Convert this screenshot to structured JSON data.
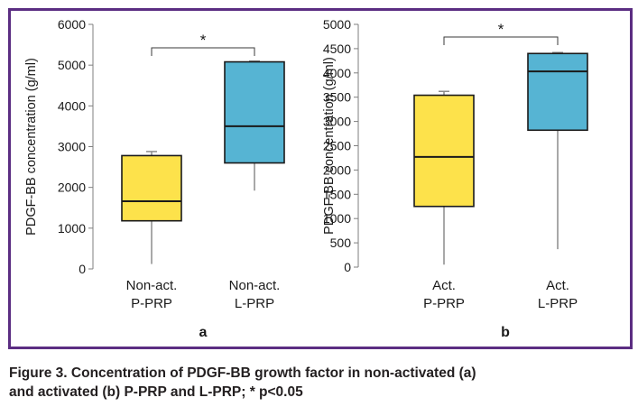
{
  "caption": {
    "line1": "Figure 3. Concentration of PDGF-BB growth factor in non-activated (a)",
    "line2": "and activated (b) P-PRP and L-PRP; * p<0.05"
  },
  "colors": {
    "frame": "#5b2d82",
    "box_p_prp": "#fde24b",
    "box_l_prp": "#56b4d3",
    "outline": "#1a1a1a",
    "whisker": "#8c8c8c"
  },
  "chart_data": [
    {
      "type": "boxplot",
      "panel_label": "a",
      "ylabel": "PDGF-BB concentration (g/ml)",
      "ylim": [
        0,
        6000
      ],
      "yticks": [
        0,
        1000,
        2000,
        3000,
        4000,
        5000,
        6000
      ],
      "grid": false,
      "significance": "*",
      "series": [
        {
          "label_lines": [
            "Non-act.",
            "P-PRP"
          ],
          "color": "#fde24b",
          "min": 120,
          "q1": 1180,
          "median": 1660,
          "q3": 2780,
          "max": 2880
        },
        {
          "label_lines": [
            "Non-act.",
            "L-PRP"
          ],
          "color": "#56b4d3",
          "min": 1920,
          "q1": 2600,
          "median": 3500,
          "q3": 5080,
          "max": 5100
        }
      ]
    },
    {
      "type": "boxplot",
      "panel_label": "b",
      "ylabel": "PDGF-BB concentration (g/ml)",
      "ylim": [
        0,
        5000
      ],
      "yticks": [
        0,
        500,
        1000,
        1500,
        2000,
        2500,
        3000,
        3500,
        4000,
        4500,
        5000
      ],
      "grid": false,
      "significance": "*",
      "series": [
        {
          "label_lines": [
            "Act.",
            "P-PRP"
          ],
          "color": "#fde24b",
          "min": 50,
          "q1": 1250,
          "median": 2270,
          "q3": 3540,
          "max": 3620
        },
        {
          "label_lines": [
            "Act.",
            "L-PRP"
          ],
          "color": "#56b4d3",
          "min": 370,
          "q1": 2820,
          "median": 4030,
          "q3": 4400,
          "max": 4420
        }
      ]
    }
  ]
}
